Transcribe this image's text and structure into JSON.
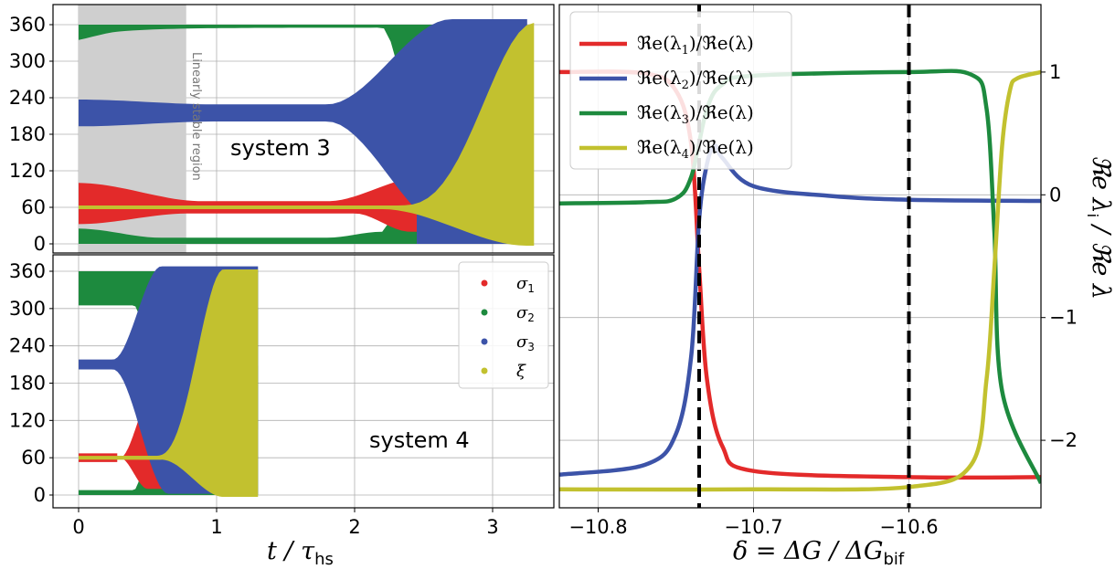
{
  "colors": {
    "red": "#e32a2a",
    "green": "#1d8a3e",
    "blue": "#3c53a8",
    "yellow": "#c2c12f",
    "shade": "#cfcfcf"
  },
  "left": {
    "xlabel": "t / τ",
    "xlabel_sub": "hs",
    "xticks": [
      "0",
      "1",
      "2",
      "3"
    ],
    "yticks": [
      "0",
      "60",
      "120",
      "180",
      "240",
      "300",
      "360"
    ],
    "top_panel": {
      "name": "system 3",
      "shaded_text": "Linearly stable region"
    },
    "bottom_panel": {
      "name": "system 4",
      "legend": [
        "σ",
        "σ",
        "σ",
        "ξ"
      ],
      "legend_subs": [
        "1",
        "2",
        "3",
        ""
      ]
    }
  },
  "right": {
    "xlabel": "δ = ΔG / ΔG",
    "xlabel_sub": "bif",
    "ylabel": "ℜe λ",
    "ylabel_sub": "i",
    "ylabel_tail": " / ℜe λ",
    "xticks": [
      "−10.8",
      "−10.7",
      "−10.6"
    ],
    "yticks": [
      "1",
      "0",
      "−1",
      "−2"
    ],
    "legend": [
      {
        "pre": "ℜe(λ",
        "sub": "1",
        "post": ")/ℜe(λ)"
      },
      {
        "pre": "ℜe(λ",
        "sub": "2",
        "post": ")/ℜe(λ)"
      },
      {
        "pre": "ℜe(λ",
        "sub": "3",
        "post": ")/ℜe(λ)"
      },
      {
        "pre": "ℜe(λ",
        "sub": "4",
        "post": ")/ℜe(λ)"
      }
    ]
  },
  "chart_data": [
    {
      "type": "scatter",
      "title": "system 3",
      "xlabel": "t / τhs",
      "ylim": [
        0,
        360
      ],
      "xlim": [
        0,
        3.3
      ],
      "shaded_region": {
        "x": [
          0,
          0.78
        ],
        "label": "Linearly stable region"
      },
      "series": [
        {
          "name": "σ1",
          "description_points": {
            "t": [
              0,
              0.5,
              1.0,
              1.5,
              2.0,
              2.4,
              2.6
            ],
            "band_center": [
              60,
              60,
              60,
              60,
              60,
              60,
              60
            ]
          }
        },
        {
          "name": "σ2",
          "description_points": {
            "t": [
              0,
              0.5,
              1.0,
              1.5,
              2.0,
              2.4,
              2.9
            ],
            "band_center": [
              350,
              355,
              357,
              357,
              357,
              357,
              357
            ]
          }
        },
        {
          "name": "σ3",
          "description_points": {
            "t": [
              0,
              0.5,
              1.0,
              1.5,
              2.0,
              2.4,
              3.0
            ],
            "band_center": [
              215,
              215,
              215,
              215,
              215,
              215,
              215
            ]
          }
        },
        {
          "name": "ξ",
          "description_points": {
            "t": [
              0,
              1.0,
              2.0,
              2.5,
              3.0,
              3.3
            ],
            "band_center": [
              60,
              60,
              60,
              60,
              60,
              60
            ]
          }
        }
      ]
    },
    {
      "type": "scatter",
      "title": "system 4",
      "xlabel": "t / τhs",
      "ylim": [
        0,
        360
      ],
      "xlim": [
        0,
        1.3
      ],
      "series": [
        {
          "name": "σ1",
          "description_points": {
            "t": [
              0,
              0.3,
              0.45,
              0.5
            ],
            "band_center": [
              60,
              60,
              60,
              60
            ]
          }
        },
        {
          "name": "σ2",
          "description_points": {
            "t": [
              0,
              0.3,
              0.5,
              0.6
            ],
            "band_center": [
              355,
              355,
              355,
              355
            ]
          }
        },
        {
          "name": "σ3",
          "description_points": {
            "t": [
              0,
              0.3,
              0.6,
              1.0
            ],
            "band_center": [
              210,
              210,
              210,
              210
            ]
          }
        },
        {
          "name": "ξ",
          "description_points": {
            "t": [
              0,
              0.5,
              0.9,
              1.3
            ],
            "band_center": [
              60,
              60,
              60,
              60
            ]
          }
        }
      ]
    },
    {
      "type": "line",
      "xlabel": "δ = ΔG/ΔGbif",
      "ylabel": "ℜe λi / ℜe λ",
      "xlim": [
        -10.825,
        -10.515
      ],
      "ylim": [
        -2.55,
        1.55
      ],
      "vlines": [
        -10.735,
        -10.6
      ],
      "series": [
        {
          "name": "ℜe(λ1)/ℜe(λ)",
          "x": [
            -10.825,
            -10.77,
            -10.75,
            -10.74,
            -10.735,
            -10.73,
            -10.72,
            -10.7,
            -10.6,
            -10.515
          ],
          "y": [
            1.0,
            0.99,
            0.85,
            0.4,
            -0.6,
            -1.5,
            -2.05,
            -2.25,
            -2.3,
            -2.3
          ]
        },
        {
          "name": "ℜe(λ2)/ℜe(λ)",
          "x": [
            -10.825,
            -10.77,
            -10.75,
            -10.74,
            -10.735,
            -10.73,
            -10.725,
            -10.72,
            -10.7,
            -10.65,
            -10.6,
            -10.515
          ],
          "y": [
            -2.28,
            -2.2,
            -1.95,
            -1.3,
            -0.2,
            0.25,
            0.4,
            0.3,
            0.07,
            -0.01,
            -0.04,
            -0.05
          ]
        },
        {
          "name": "ℜe(λ3)/ℜe(λ)",
          "x": [
            -10.825,
            -10.77,
            -10.75,
            -10.74,
            -10.73,
            -10.72,
            -10.7,
            -10.6,
            -10.56,
            -10.55,
            -10.545,
            -10.54,
            -10.515
          ],
          "y": [
            -0.07,
            -0.06,
            -0.03,
            0.15,
            0.7,
            0.9,
            0.97,
            1.0,
            0.98,
            0.7,
            -0.3,
            -1.6,
            -2.35
          ]
        },
        {
          "name": "ℜe(λ4)/ℜe(λ)",
          "x": [
            -10.825,
            -10.7,
            -10.6,
            -10.56,
            -10.55,
            -10.545,
            -10.54,
            -10.535,
            -10.53,
            -10.515
          ],
          "y": [
            -2.4,
            -2.4,
            -2.38,
            -2.2,
            -1.5,
            -0.6,
            0.4,
            0.85,
            0.95,
            1.0
          ]
        }
      ]
    }
  ]
}
